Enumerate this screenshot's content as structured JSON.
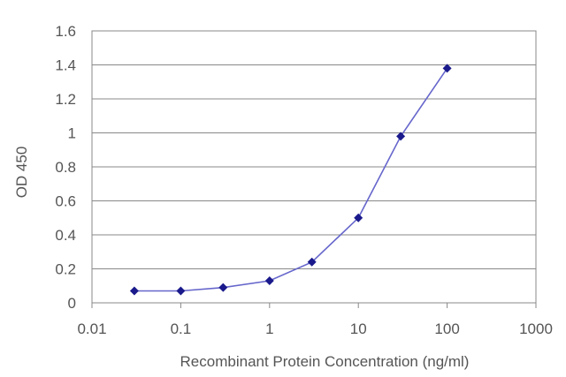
{
  "chart_data": {
    "type": "line",
    "title": "",
    "xlabel": "Recombinant Protein Concentration (ng/ml)",
    "ylabel": "OD 450",
    "x_scale": "log",
    "xlim": [
      0.01,
      1000
    ],
    "ylim": [
      0,
      1.6
    ],
    "x_ticks": [
      0.01,
      0.1,
      1,
      10,
      100,
      1000
    ],
    "x_tick_labels": [
      "0.01",
      "0.1",
      "1",
      "10",
      "100",
      "1000"
    ],
    "y_ticks": [
      0,
      0.2,
      0.4,
      0.6,
      0.8,
      1,
      1.2,
      1.4,
      1.6
    ],
    "y_tick_labels": [
      "0",
      "0.2",
      "0.4",
      "0.6",
      "0.8",
      "1",
      "1.2",
      "1.4",
      "1.6"
    ],
    "grid": "horizontal",
    "legend": "none",
    "series": [
      {
        "x": [
          0.03,
          0.1,
          0.3,
          1,
          3,
          10,
          30,
          100
        ],
        "y": [
          0.07,
          0.07,
          0.09,
          0.13,
          0.24,
          0.5,
          0.98,
          1.38
        ]
      }
    ],
    "colors": {
      "series": "#6666cc",
      "marker": "#1a1a8c",
      "grid": "#888888",
      "text": "#555555"
    }
  }
}
